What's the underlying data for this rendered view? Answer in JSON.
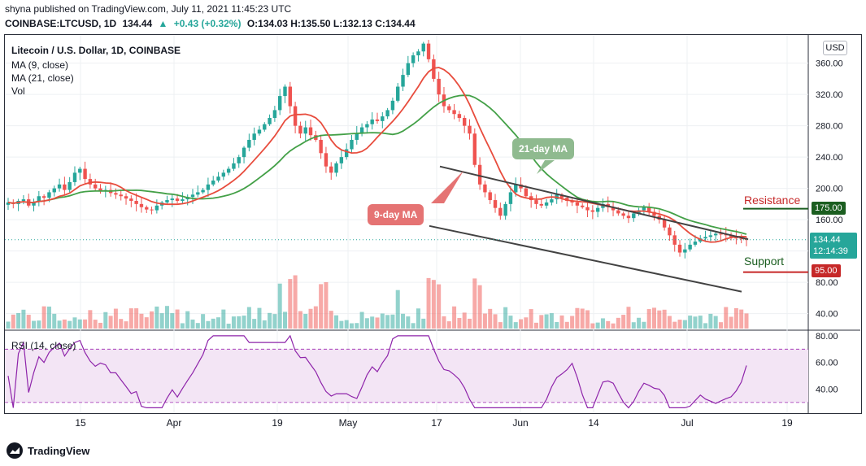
{
  "header": {
    "line1": "shyna published on TradingView.com, July 11, 2021 11:45:23 UTC",
    "symbol": "COINBASE:LTCUSD, 1D",
    "price": "134.44",
    "change_icon": "up-triangle-icon",
    "change": "+0.43 (+0.32%)",
    "ohlc": "O:134.03 H:135.50 L:132.13 C:134.44"
  },
  "legend": {
    "title": "Litecoin / U.S. Dollar, 1D, COINBASE",
    "ma9": "MA (9, close)",
    "ma21": "MA (21, close)",
    "vol": "Vol",
    "rsi": "RSI (14, close)"
  },
  "currency_button": "USD",
  "annotations": {
    "ma21_label": "21-day MA",
    "ma9_label": "9-day MA",
    "resistance": "Resistance",
    "support": "Support",
    "resistance_value": "175.00",
    "support_value": "95.00",
    "last_price": "134.44",
    "countdown": "12:14:39"
  },
  "footer": {
    "brand": "TradingView",
    "logo_icon": "tradingview-logo-icon"
  },
  "colors": {
    "up": "#26a69a",
    "down": "#ef5350",
    "ma9": "#e84c3d",
    "ma21": "#43a047",
    "rsi": "#8e24aa",
    "resistance": "#1b5e20",
    "support": "#c62828"
  },
  "chart_data": {
    "type": "candlestick",
    "title": "Litecoin / U.S. Dollar, 1D, COINBASE",
    "y_ticks": [
      40,
      80,
      120,
      160,
      200,
      240,
      280,
      320,
      360
    ],
    "y_tick_labels": [
      "40.00",
      "80.00",
      "120.00",
      "160.00",
      "200.00",
      "240.00",
      "280.00",
      "320.00",
      "360.00"
    ],
    "x_tick_labels": [
      "15",
      "Apr",
      "19",
      "May",
      "17",
      "Jun",
      "14",
      "Jul",
      "19"
    ],
    "rsi_ticks": [
      40,
      60,
      80
    ],
    "rsi_tick_labels": [
      "40.00",
      "60.00",
      "80.00"
    ],
    "close_series": [
      182,
      180,
      184,
      186,
      178,
      183,
      190,
      188,
      195,
      200,
      205,
      198,
      208,
      220,
      225,
      212,
      205,
      200,
      196,
      198,
      194,
      192,
      190,
      187,
      184,
      180,
      176,
      173,
      172,
      178,
      182,
      185,
      187,
      184,
      186,
      189,
      192,
      195,
      198,
      205,
      210,
      215,
      220,
      225,
      232,
      240,
      252,
      262,
      270,
      275,
      282,
      290,
      300,
      318,
      330,
      305,
      280,
      270,
      278,
      268,
      262,
      245,
      228,
      220,
      232,
      240,
      250,
      262,
      270,
      278,
      282,
      288,
      286,
      292,
      300,
      312,
      330,
      345,
      360,
      370,
      375,
      385,
      365,
      340,
      320,
      305,
      300,
      295,
      290,
      280,
      270,
      230,
      205,
      195,
      185,
      175,
      165,
      180,
      195,
      205,
      200,
      190,
      185,
      180,
      178,
      182,
      186,
      192,
      188,
      184,
      182,
      178,
      176,
      172,
      170,
      175,
      180,
      176,
      172,
      168,
      165,
      162,
      168,
      172,
      176,
      170,
      165,
      160,
      150,
      140,
      128,
      118,
      122,
      128,
      132,
      136,
      138,
      140,
      142,
      141,
      140,
      138,
      136,
      135,
      134.44
    ]
  }
}
